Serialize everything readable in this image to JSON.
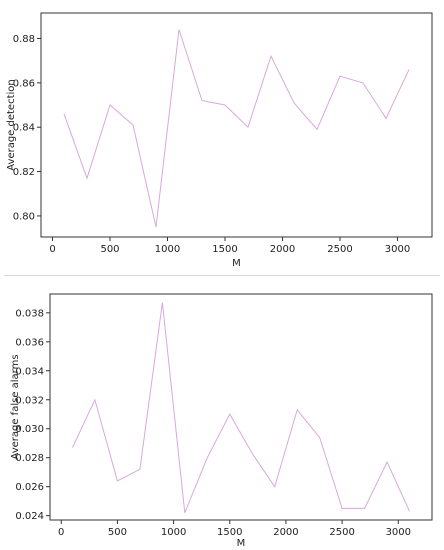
{
  "chart_data": [
    {
      "type": "line",
      "xlabel": "M",
      "ylabel": "Average detection",
      "xlim": [
        -100,
        3300
      ],
      "ylim": [
        0.7905,
        0.8915
      ],
      "xticks": [
        0,
        500,
        1000,
        1500,
        2000,
        2500,
        3000
      ],
      "yticks": [
        0.8,
        0.82,
        0.84,
        0.86,
        0.88
      ],
      "ytick_labels": [
        "0.80",
        "0.82",
        "0.84",
        "0.86",
        "0.88"
      ],
      "grid": false,
      "series": [
        {
          "color": "#d9a7df",
          "x": [
            100,
            300,
            500,
            700,
            900,
            1100,
            1300,
            1500,
            1700,
            1900,
            2100,
            2300,
            2500,
            2700,
            2900,
            3100
          ],
          "y": [
            0.846,
            0.817,
            0.85,
            0.841,
            0.795,
            0.884,
            0.852,
            0.85,
            0.84,
            0.872,
            0.851,
            0.839,
            0.863,
            0.86,
            0.844,
            0.866
          ]
        }
      ]
    },
    {
      "type": "line",
      "xlabel": "M",
      "ylabel": "Average false alarms",
      "xlim": [
        -100,
        3300
      ],
      "ylim": [
        0.0237,
        0.0393
      ],
      "xticks": [
        0,
        500,
        1000,
        1500,
        2000,
        2500,
        3000
      ],
      "yticks": [
        0.024,
        0.026,
        0.028,
        0.03,
        0.032,
        0.034,
        0.036,
        0.038
      ],
      "ytick_labels": [
        "0.024",
        "0.026",
        "0.028",
        "0.030",
        "0.032",
        "0.034",
        "0.036",
        "0.038"
      ],
      "grid": false,
      "series": [
        {
          "color": "#d9a7df",
          "x": [
            100,
            300,
            500,
            700,
            900,
            1100,
            1300,
            1500,
            1700,
            1900,
            2100,
            2300,
            2500,
            2700,
            2900,
            3100
          ],
          "y": [
            0.0287,
            0.032,
            0.0264,
            0.0272,
            0.0387,
            0.0242,
            0.028,
            0.031,
            0.0283,
            0.026,
            0.0313,
            0.0294,
            0.0245,
            0.0245,
            0.0277,
            0.0243
          ]
        }
      ]
    }
  ]
}
